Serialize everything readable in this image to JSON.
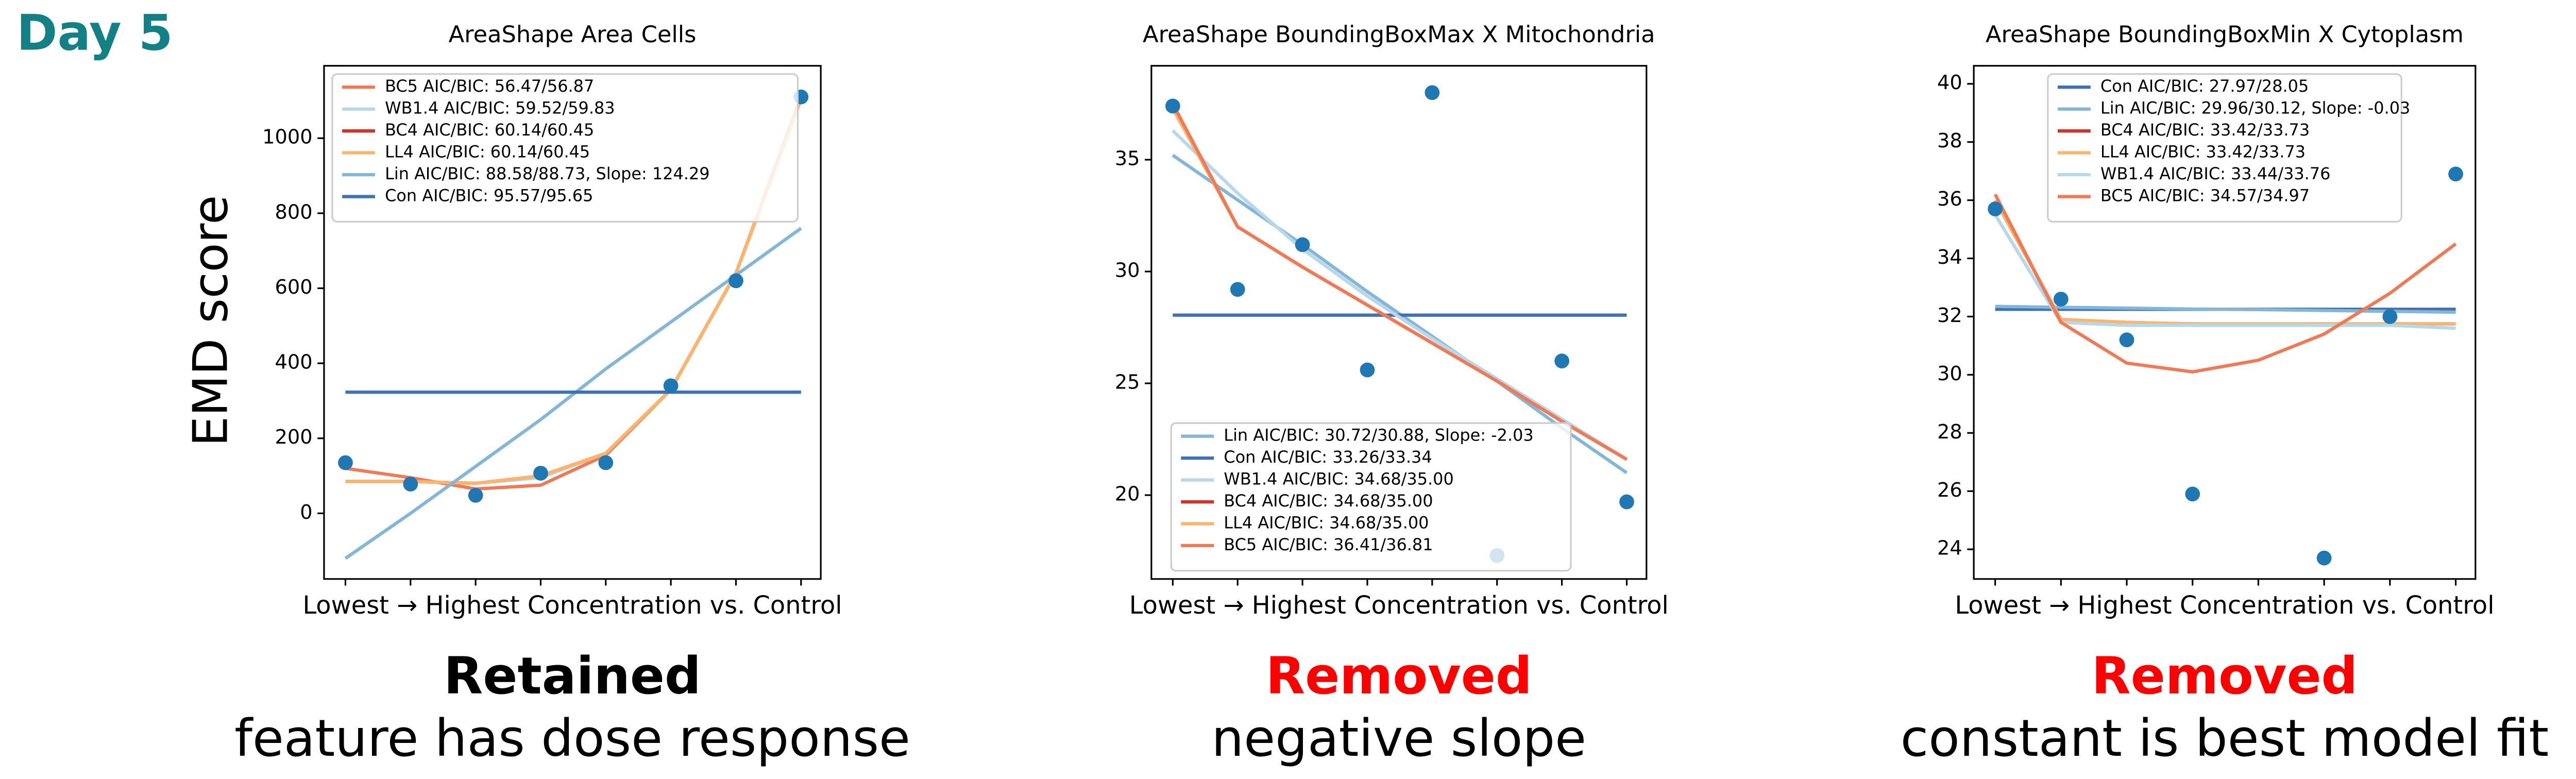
{
  "header": {
    "day": "Day 5"
  },
  "chart_data": [
    {
      "type": "line",
      "title": "AreaShape Area Cells",
      "xlabel": "Lowest → Highest Concentration vs. Control",
      "ylabel": "EMD score",
      "categories": [
        null,
        null,
        null,
        null,
        null,
        null,
        null,
        null
      ],
      "points": [
        135,
        78,
        48,
        107,
        135,
        340,
        620,
        1110
      ],
      "point_color": "#1f77b4",
      "ylim": [
        -175,
        1193
      ],
      "yticks": [
        0,
        200,
        400,
        600,
        800,
        1000
      ],
      "legend": "upper left",
      "series": [
        {
          "name": "BC5 AIC/BIC: 56.47/56.87",
          "color": "#f07a56",
          "values": [
            120,
            95,
            65,
            75,
            155,
            330,
            640,
            1110
          ]
        },
        {
          "name": "WB1.4 AIC/BIC: 59.52/59.83",
          "color": "#b7d7ea",
          "values": [
            85,
            85,
            80,
            95,
            160,
            330,
            640,
            1105
          ]
        },
        {
          "name": "BC4 AIC/BIC: 60.14/60.45",
          "color": "#d73027",
          "values": [
            85,
            85,
            80,
            100,
            160,
            330,
            640,
            1105
          ]
        },
        {
          "name": "LL4 AIC/BIC: 60.14/60.45",
          "color": "#fdb46c",
          "values": [
            85,
            85,
            80,
            100,
            160,
            330,
            640,
            1105
          ]
        },
        {
          "name": "Lin AIC/BIC: 88.58/88.73, Slope: 124.29",
          "color": "#84b6d8",
          "values": [
            -120,
            0,
            125,
            250,
            385,
            510,
            635,
            760
          ]
        },
        {
          "name": "Con AIC/BIC: 95.57/95.65",
          "color": "#3f72b5",
          "values": [
            323,
            323,
            323,
            323,
            323,
            323,
            323,
            323
          ]
        }
      ],
      "verdict": "Retained",
      "verdict_color": "#000000",
      "reason": "feature has dose response"
    },
    {
      "type": "line",
      "title": "AreaShape BoundingBoxMax X Mitochondria",
      "xlabel": "Lowest → Highest Concentration vs. Control",
      "categories": [
        null,
        null,
        null,
        null,
        null,
        null,
        null,
        null
      ],
      "points": [
        37.4,
        29.2,
        31.2,
        25.6,
        38.0,
        17.3,
        26.0,
        19.7
      ],
      "point_color": "#1f77b4",
      "ylim": [
        16.25,
        39.2
      ],
      "yticks": [
        20,
        25,
        30,
        35
      ],
      "legend": "lower left",
      "series": [
        {
          "name": "Lin AIC/BIC: 30.72/30.88, Slope: -2.03",
          "color": "#84b6d8",
          "values": [
            35.2,
            33.2,
            31.2,
            29.1,
            27.1,
            25.1,
            23.0,
            21.0
          ]
        },
        {
          "name": "Con AIC/BIC: 33.26/33.34",
          "color": "#3f72b5",
          "values": [
            28.05,
            28.05,
            28.05,
            28.05,
            28.05,
            28.05,
            28.05,
            28.05
          ]
        },
        {
          "name": "WB1.4 AIC/BIC: 34.68/35.00",
          "color": "#b7d7ea",
          "values": [
            36.3,
            33.5,
            31.0,
            28.9,
            27.0,
            25.2,
            23.4,
            21.6
          ]
        },
        {
          "name": "BC4 AIC/BIC: 34.68/35.00",
          "color": "#d73027",
          "values": [
            37.3,
            32.0,
            30.2,
            28.5,
            26.8,
            25.1,
            23.3,
            21.6
          ]
        },
        {
          "name": "LL4 AIC/BIC: 34.68/35.00",
          "color": "#fdb46c",
          "values": [
            37.3,
            32.0,
            30.2,
            28.5,
            26.8,
            25.1,
            23.3,
            21.6
          ]
        },
        {
          "name": "BC5 AIC/BIC: 36.41/36.81",
          "color": "#f07a56",
          "values": [
            37.5,
            32.0,
            30.2,
            28.5,
            26.8,
            25.1,
            23.3,
            21.6
          ]
        }
      ],
      "verdict": "Removed",
      "verdict_color": "#ff0000",
      "reason": "negative slope"
    },
    {
      "type": "line",
      "title": "AreaShape BoundingBoxMin X Cytoplasm",
      "xlabel": "Lowest → Highest Concentration vs. Control",
      "categories": [
        null,
        null,
        null,
        null,
        null,
        null,
        null,
        null
      ],
      "points": [
        35.7,
        32.6,
        31.2,
        25.9,
        null,
        23.7,
        32.0,
        36.9
      ],
      "point_color": "#1f77b4",
      "ylim": [
        22.98,
        40.62
      ],
      "yticks": [
        24,
        26,
        28,
        30,
        32,
        34,
        36,
        38,
        40
      ],
      "legend": "upper center",
      "series": [
        {
          "name": "Con AIC/BIC: 27.97/28.05",
          "color": "#3f72b5",
          "values": [
            32.25,
            32.25,
            32.25,
            32.25,
            32.25,
            32.25,
            32.25,
            32.25
          ]
        },
        {
          "name": "Lin AIC/BIC: 29.96/30.12, Slope: -0.03",
          "color": "#84b6d8",
          "values": [
            32.35,
            32.32,
            32.29,
            32.26,
            32.24,
            32.21,
            32.18,
            32.15
          ]
        },
        {
          "name": "BC4 AIC/BIC: 33.42/33.73",
          "color": "#d73027",
          "values": [
            36.0,
            31.9,
            31.8,
            31.75,
            31.75,
            31.75,
            31.75,
            31.75
          ]
        },
        {
          "name": "LL4 AIC/BIC: 33.42/33.73",
          "color": "#fdb46c",
          "values": [
            36.0,
            31.9,
            31.8,
            31.75,
            31.75,
            31.75,
            31.75,
            31.75
          ]
        },
        {
          "name": "WB1.4 AIC/BIC: 33.44/33.76",
          "color": "#b7d7ea",
          "values": [
            35.5,
            31.8,
            31.7,
            31.7,
            31.7,
            31.7,
            31.7,
            31.6
          ]
        },
        {
          "name": "BC5 AIC/BIC: 34.57/34.97",
          "color": "#f07a56",
          "values": [
            36.2,
            31.8,
            30.4,
            30.1,
            30.5,
            31.4,
            32.8,
            34.5
          ]
        }
      ],
      "verdict": "Removed",
      "verdict_color": "#ff0000",
      "reason": "constant is best model fit"
    }
  ]
}
